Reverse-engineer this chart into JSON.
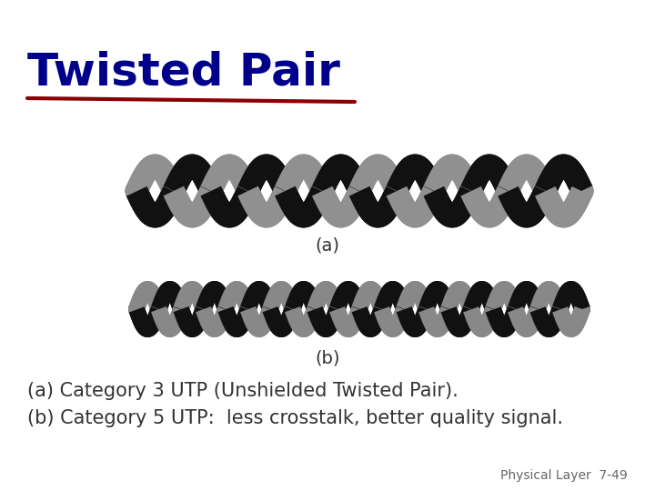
{
  "title": "Twisted Pair",
  "title_color": "#00008B",
  "title_fontsize": 36,
  "underline_color": "#8B0000",
  "label_a": "(a)",
  "label_b": "(b)",
  "caption_line1": "(a) Category 3 UTP (Unshielded Twisted Pair).",
  "caption_line2": "(b) Category 5 UTP:  less crosstalk, better quality signal.",
  "footer": "Physical Layer  7-49",
  "caption_color": "#333333",
  "caption_fontsize": 15,
  "footer_color": "#666666",
  "footer_fontsize": 10,
  "background_color": "#ffffff"
}
